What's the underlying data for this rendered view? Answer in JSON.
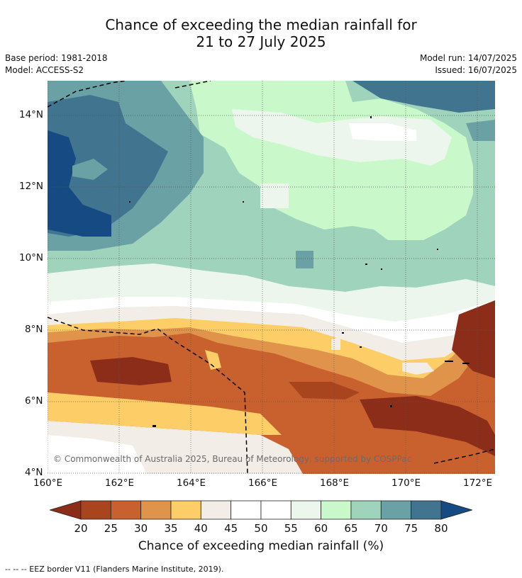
{
  "title_line1": "Chance of exceeding the median rainfall for",
  "title_line2": "21 to 27 July 2025",
  "meta": {
    "base_period": "Base period: 1981-2018",
    "model": "Model: ACCESS-S2",
    "model_run": "Model run: 14/07/2025",
    "issued": "Issued: 16/07/2025"
  },
  "lat_labels": [
    "14°N",
    "12°N",
    "10°N",
    "8°N",
    "6°N",
    "4°N"
  ],
  "lon_labels": [
    "160°E",
    "162°E",
    "164°E",
    "166°E",
    "168°E",
    "170°E",
    "172°E"
  ],
  "copyright": "© Commonwealth of Australia 2025, Bureau of Meteorology, supported by COSPPac",
  "colorbar": {
    "title": "Chance of exceeding median rainfall (%)",
    "ticks": [
      "20",
      "25",
      "30",
      "35",
      "40",
      "45",
      "50",
      "55",
      "60",
      "65",
      "70",
      "75",
      "80"
    ],
    "colors": [
      "#8c2d1a",
      "#a8451f",
      "#c9612f",
      "#e0944b",
      "#fdce67",
      "#f2ede6",
      "#ffffff",
      "#ffffff",
      "#ecf6ec",
      "#c9f9cb",
      "#9fd3bb",
      "#6aa1a4",
      "#40748f",
      "#154a83"
    ]
  },
  "footnote": "--  --  -- EEZ border V11 (Flanders Marine Institute, 2019)."
}
